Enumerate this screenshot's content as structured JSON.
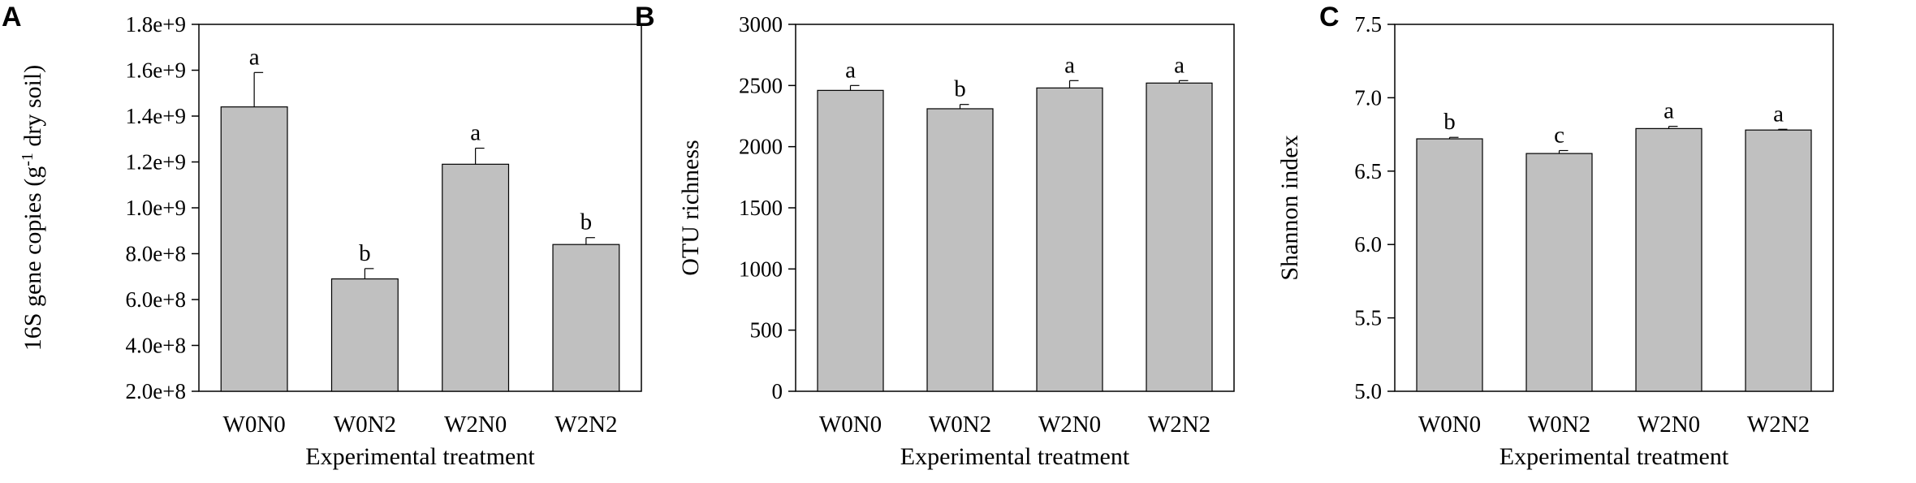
{
  "chart_data": [
    {
      "panel": "A",
      "type": "bar",
      "categories": [
        "W0N0",
        "W0N2",
        "W2N0",
        "W2N2"
      ],
      "values": [
        1440000000,
        690000000,
        1190000000,
        840000000
      ],
      "errors": [
        150000000,
        45000000,
        70000000,
        30000000
      ],
      "significance": [
        "a",
        "b",
        "a",
        "b"
      ],
      "xlabel": "Experimental treatment",
      "ylabel": "16S gene copies (g",
      "ylabel_sup": "-1",
      "ylabel_rest": " dry soil)",
      "ylim": [
        200000000,
        1800000000
      ],
      "yticks": [
        200000000,
        400000000,
        600000000,
        800000000,
        1000000000,
        1200000000,
        1400000000,
        1600000000,
        1800000000
      ],
      "ytick_labels": [
        "2.0e+8",
        "4.0e+8",
        "6.0e+8",
        "8.0e+8",
        "1.0e+9",
        "1.2e+9",
        "1.4e+9",
        "1.6e+9",
        "1.8e+9"
      ],
      "bar_color": "#c0c0c0"
    },
    {
      "panel": "B",
      "type": "bar",
      "categories": [
        "W0N0",
        "W0N2",
        "W2N0",
        "W2N2"
      ],
      "values": [
        2460,
        2310,
        2480,
        2520
      ],
      "errors": [
        40,
        35,
        60,
        20
      ],
      "significance": [
        "a",
        "b",
        "a",
        "a"
      ],
      "xlabel": "Experimental treatment",
      "ylabel": "OTU richness",
      "ylabel_sup": "",
      "ylabel_rest": "",
      "ylim": [
        0,
        3000
      ],
      "yticks": [
        0,
        500,
        1000,
        1500,
        2000,
        2500,
        3000
      ],
      "ytick_labels": [
        "0",
        "500",
        "1000",
        "1500",
        "2000",
        "2500",
        "3000"
      ],
      "bar_color": "#c0c0c0"
    },
    {
      "panel": "C",
      "type": "bar",
      "categories": [
        "W0N0",
        "W0N2",
        "W2N0",
        "W2N2"
      ],
      "values": [
        6.72,
        6.62,
        6.79,
        6.78
      ],
      "errors": [
        0.01,
        0.02,
        0.015,
        0.005
      ],
      "significance": [
        "b",
        "c",
        "a",
        "a"
      ],
      "xlabel": "Experimental treatment",
      "ylabel": "Shannon index",
      "ylabel_sup": "",
      "ylabel_rest": "",
      "ylim": [
        5.0,
        7.5
      ],
      "yticks": [
        5.0,
        5.5,
        6.0,
        6.5,
        7.0,
        7.5
      ],
      "ytick_labels": [
        "5.0",
        "5.5",
        "6.0",
        "6.5",
        "7.0",
        "7.5"
      ],
      "bar_color": "#c0c0c0"
    }
  ]
}
